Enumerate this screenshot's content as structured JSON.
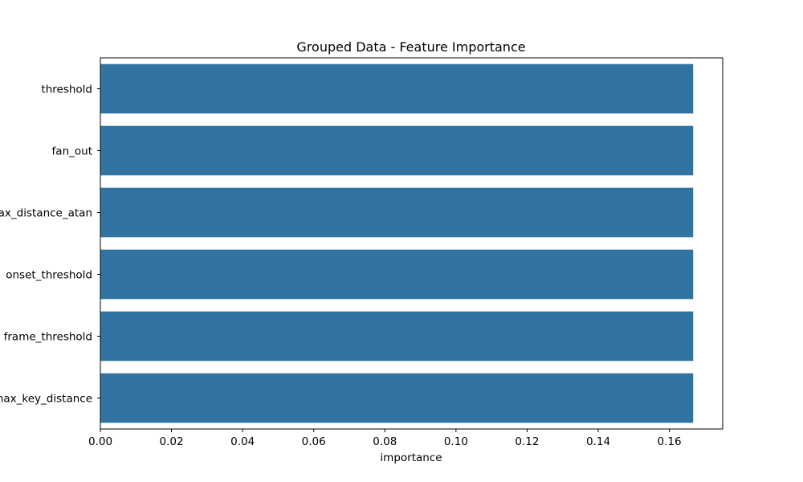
{
  "chart_data": {
    "type": "bar",
    "orientation": "horizontal",
    "title": "Grouped Data - Feature Importance",
    "xlabel": "importance",
    "ylabel": "",
    "categories": [
      "threshold",
      "fan_out",
      "max_distance_atan",
      "onset_threshold",
      "frame_threshold",
      "max_key_distance"
    ],
    "values": [
      0.1667,
      0.1667,
      0.1667,
      0.1667,
      0.1667,
      0.1667
    ],
    "xlim": [
      0,
      0.175
    ],
    "xticks": [
      0.0,
      0.02,
      0.04,
      0.06,
      0.08,
      0.1,
      0.12,
      0.14,
      0.16
    ],
    "xtick_labels": [
      "0.00",
      "0.02",
      "0.04",
      "0.06",
      "0.08",
      "0.10",
      "0.12",
      "0.14",
      "0.16"
    ],
    "bar_color": "#3274a1",
    "grid": false,
    "legend": "none"
  }
}
